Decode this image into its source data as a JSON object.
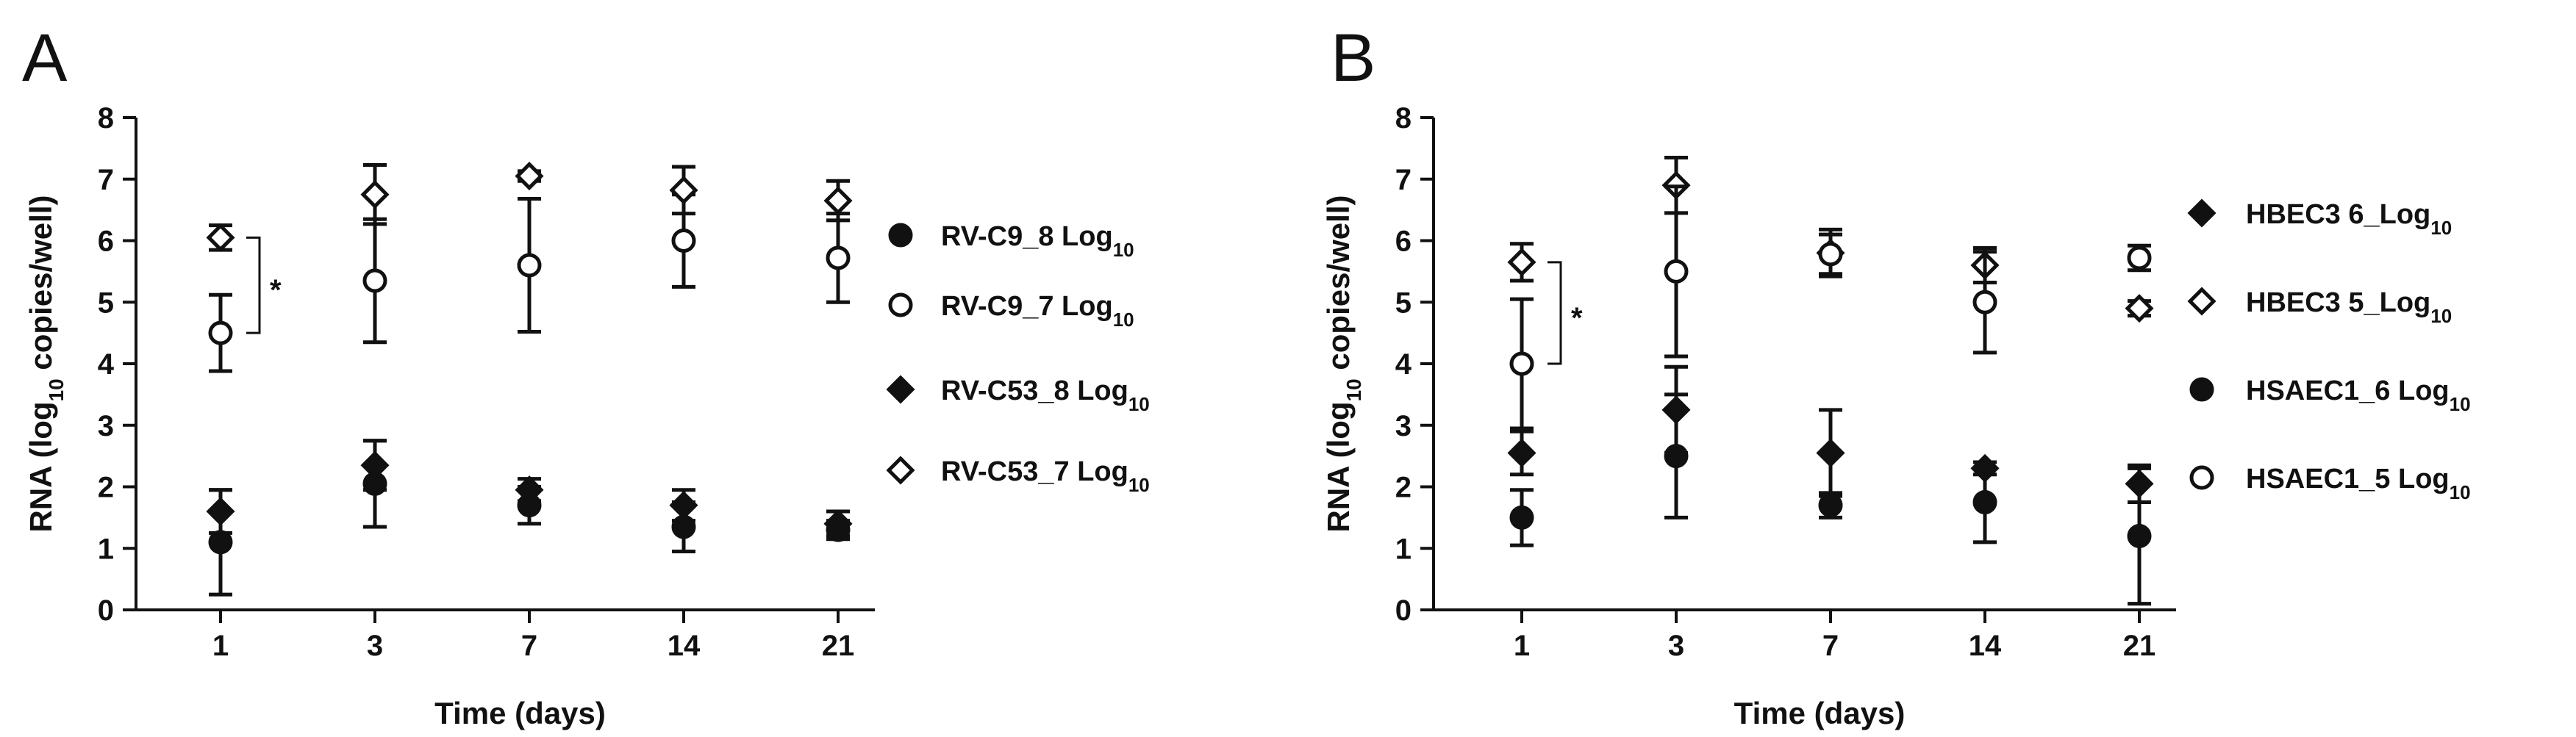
{
  "chart_data": [
    {
      "type": "scatter",
      "panel": "A",
      "ylabel_parts": [
        "RNA (log",
        "10",
        " copies/well)"
      ],
      "xlabel": "Time (days)",
      "categories": [
        "1",
        "3",
        "7",
        "14",
        "21"
      ],
      "ylim": [
        0,
        8
      ],
      "yticks": [
        "0",
        "1",
        "2",
        "3",
        "4",
        "5",
        "6",
        "7",
        "8"
      ],
      "grid": false,
      "legend_position": "right",
      "significance": {
        "label": "*",
        "category": "1",
        "between": [
          4.5,
          6.05
        ]
      },
      "series": [
        {
          "name": "RV-C9_8 Log10",
          "legend_parts": [
            "RV-C9_8 Log",
            "10"
          ],
          "marker": "circle-filled",
          "values": [
            1.1,
            2.05,
            1.7,
            1.35,
            1.3
          ],
          "errors": [
            0.85,
            0.7,
            0.3,
            0.4,
            0.15
          ]
        },
        {
          "name": "RV-C9_7 Log10",
          "legend_parts": [
            "RV-C9_7 Log",
            "10"
          ],
          "marker": "circle-open",
          "values": [
            4.5,
            5.35,
            5.6,
            6.0,
            5.72
          ],
          "errors": [
            0.62,
            1.0,
            1.08,
            0.75,
            0.72
          ]
        },
        {
          "name": "RV-C53_8 Log10",
          "legend_parts": [
            "RV-C53_8 Log",
            "10"
          ],
          "marker": "diamond-filled",
          "values": [
            1.6,
            2.35,
            1.95,
            1.7,
            1.4
          ],
          "errors": [
            0.35,
            0.4,
            0.18,
            0.25,
            0.2
          ]
        },
        {
          "name": "RV-C53_7 Log10",
          "legend_parts": [
            "RV-C53_7 Log",
            "10"
          ],
          "marker": "diamond-open",
          "values": [
            6.05,
            6.75,
            7.05,
            6.82,
            6.65
          ],
          "errors": [
            0.2,
            0.48,
            0.08,
            0.38,
            0.32
          ]
        }
      ]
    },
    {
      "type": "scatter",
      "panel": "B",
      "ylabel_parts": [
        "RNA (log",
        "10",
        " copies/well)"
      ],
      "xlabel": "Time (days)",
      "categories": [
        "1",
        "3",
        "7",
        "14",
        "21"
      ],
      "ylim": [
        0,
        8
      ],
      "yticks": [
        "0",
        "1",
        "2",
        "3",
        "4",
        "5",
        "6",
        "7",
        "8"
      ],
      "grid": false,
      "legend_position": "right",
      "significance": {
        "label": "*",
        "category": "1",
        "between": [
          4.0,
          5.65
        ]
      },
      "series": [
        {
          "name": "HBEC3 6_Log10",
          "legend_parts": [
            "HBEC3 6_Log",
            "10"
          ],
          "marker": "diamond-filled",
          "values": [
            2.55,
            3.25,
            2.55,
            2.3,
            2.05
          ],
          "errors": [
            0.35,
            0.7,
            0.7,
            0.1,
            0.3
          ]
        },
        {
          "name": "HBEC3 5_Log10",
          "legend_parts": [
            "HBEC3 5_Log",
            "10"
          ],
          "marker": "diamond-open",
          "values": [
            5.65,
            6.9,
            5.8,
            5.6,
            4.9
          ],
          "errors": [
            0.3,
            0.45,
            0.38,
            0.28,
            0.12
          ]
        },
        {
          "name": "HSAEC1_6 Log10",
          "legend_parts": [
            "HSAEC1_6 Log",
            "10"
          ],
          "marker": "circle-filled",
          "values": [
            1.5,
            2.5,
            1.7,
            1.75,
            1.2
          ],
          "errors": [
            0.45,
            1.0,
            0.2,
            0.65,
            1.1
          ]
        },
        {
          "name": "HSAEC1_5 Log10",
          "legend_parts": [
            "HSAEC1_5 Log",
            "10"
          ],
          "marker": "circle-open",
          "values": [
            4.0,
            5.5,
            5.78,
            5.0,
            5.72
          ],
          "errors": [
            1.05,
            1.38,
            0.32,
            0.82,
            0.2
          ]
        }
      ]
    }
  ]
}
